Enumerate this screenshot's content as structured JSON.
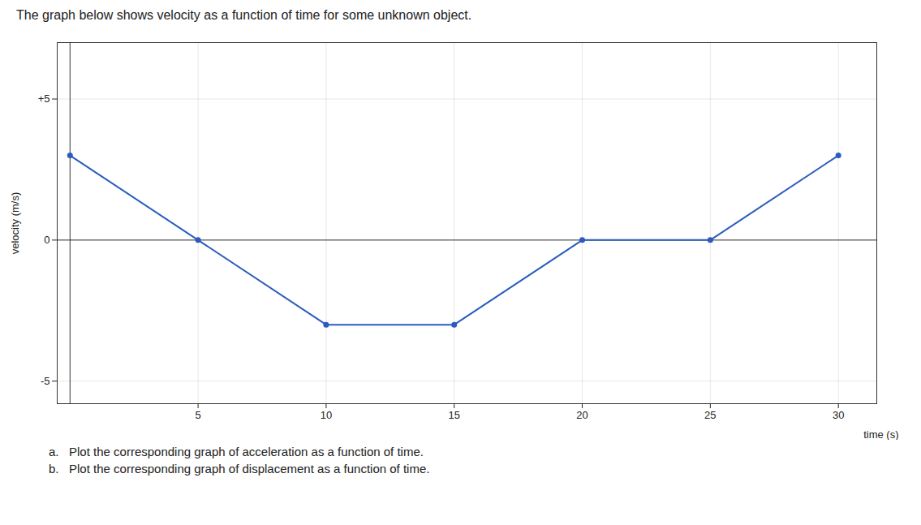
{
  "chart_data": {
    "type": "line",
    "title": "The graph below shows velocity as a function of time for some unknown object.",
    "xlabel": "time (s)",
    "ylabel": "velocity (m/s)",
    "annotations": [
      "a.   Plot the corresponding graph of acceleration as a function of time.",
      "b.   Plot the corresponding graph of displacement as a function of time."
    ],
    "x": [
      0,
      5,
      10,
      15,
      20,
      25,
      30
    ],
    "values": [
      3,
      0,
      -3,
      -3,
      0,
      0,
      3
    ],
    "color": "#2b5bbf",
    "marker": "circle",
    "xlim": [
      -0.5,
      31.5
    ],
    "ylim": [
      -5.8,
      7.0
    ],
    "xticks": [
      5,
      10,
      15,
      20,
      25,
      30
    ],
    "yticks": [
      -5,
      0,
      {
        "value": 5,
        "label": "+5"
      }
    ],
    "grid": true
  }
}
